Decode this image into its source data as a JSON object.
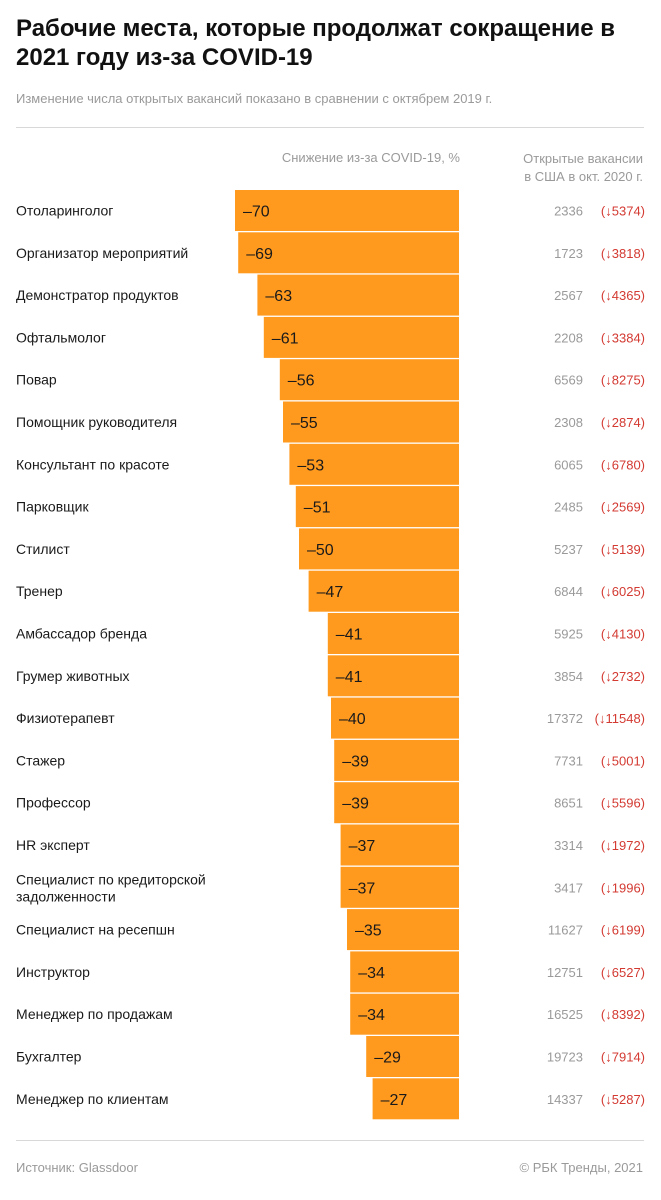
{
  "header": {
    "title": "Рабочие места, которые продолжат сокращение в 2021 году из-за COVID-19",
    "subtitle": "Изменение числа открытых вакансий показано в сравнении с октябрем 2019 г."
  },
  "columns": {
    "drop_header": "Снижение из-за COVID-19, %",
    "open_header_line1": "Открытые вакансии",
    "open_header_line2": "в США в окт. 2020 г."
  },
  "footer": {
    "source": "Источник:  Glassdoor",
    "credit": "© РБК Тренды, 2021"
  },
  "colors": {
    "bar": "#FF9A1F",
    "change": "#D33A32",
    "muted": "#9A9A9A"
  },
  "chart_data": {
    "type": "bar",
    "orientation": "horizontal",
    "value_unit": "%",
    "bars_extend_from": "right",
    "categories": [
      [
        "Отоларинголог"
      ],
      [
        "Организатор мероприятий"
      ],
      [
        "Демонстратор продуктов"
      ],
      [
        "Офтальмолог"
      ],
      [
        "Повар"
      ],
      [
        "Помощник руководителя"
      ],
      [
        "Консультант по красоте"
      ],
      [
        "Парковщик"
      ],
      [
        "Стилист"
      ],
      [
        "Тренер"
      ],
      [
        "Амбассадор бренда"
      ],
      [
        "Грумер животных"
      ],
      [
        "Физиотерапевт"
      ],
      [
        "Стажер"
      ],
      [
        "Профессор"
      ],
      [
        "HR эксперт"
      ],
      [
        "Специалист по кредиторской",
        "задолженности"
      ],
      [
        "Специалист на ресепшн"
      ],
      [
        "Инструктор"
      ],
      [
        "Менеджер по продажам"
      ],
      [
        "Бухгалтер"
      ],
      [
        "Менеджер по клиентам"
      ]
    ],
    "series": [
      {
        "values": [
          -70,
          -69,
          -63,
          -61,
          -56,
          -55,
          -53,
          -51,
          -50,
          -47,
          -41,
          -41,
          -40,
          -39,
          -39,
          -37,
          -37,
          -35,
          -34,
          -34,
          -29,
          -27
        ],
        "labels": [
          "–70",
          "–69",
          "–63",
          "–61",
          "–56",
          "–55",
          "–53",
          "–51",
          "–50",
          "–47",
          "–41",
          "–41",
          "–40",
          "–39",
          "–39",
          "–37",
          "–37",
          "–35",
          "–34",
          "–34",
          "–29",
          "–27"
        ]
      }
    ],
    "open_jobs": [
      "2336",
      "1723",
      "2567",
      "2208",
      "6569",
      "2308",
      "6065",
      "2485",
      "5237",
      "6844",
      "5925",
      "3854",
      "17372",
      "7731",
      "8651",
      "3314",
      "3417",
      "11627",
      "12751",
      "16525",
      "19723",
      "14337"
    ],
    "open_jobs_change": [
      "(↓5374)",
      "(↓3818)",
      "(↓4365)",
      "(↓3384)",
      "(↓8275)",
      "(↓2874)",
      "(↓6780)",
      "(↓2569)",
      "(↓5139)",
      "(↓6025)",
      "(↓4130)",
      "(↓2732)",
      "(↓11548)",
      "(↓5001)",
      "(↓5596)",
      "(↓1972)",
      "(↓1996)",
      "(↓6199)",
      "(↓6527)",
      "(↓8392)",
      "(↓7914)",
      "(↓5287)"
    ],
    "grid": false,
    "legend": "none"
  }
}
